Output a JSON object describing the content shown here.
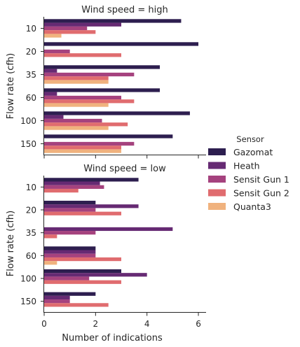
{
  "chart_data": {
    "type": "bar",
    "orientation": "horizontal",
    "xlabel": "Number of indications",
    "ylabel": "Flow rate (cfh)",
    "xlim": [
      0,
      6.3
    ],
    "xticks": [
      "0",
      "2",
      "4",
      "6"
    ],
    "categories": [
      "10",
      "20",
      "35",
      "60",
      "100",
      "150"
    ],
    "legend": {
      "title": "Sensor",
      "placement": "right",
      "entries": [
        {
          "name": "Gazomat",
          "color": "#2d1e4f"
        },
        {
          "name": "Heath",
          "color": "#662a73"
        },
        {
          "name": "Sensit Gun 1",
          "color": "#a5427e"
        },
        {
          "name": "Sensit Gun 2",
          "color": "#e06c6f"
        },
        {
          "name": "Quanta3",
          "color": "#f0b27e"
        }
      ]
    },
    "panels": [
      {
        "title": "Wind speed = high",
        "series": [
          {
            "name": "Gazomat",
            "values": [
              5.33,
              6.0,
              4.5,
              4.5,
              5.67,
              5.0
            ]
          },
          {
            "name": "Heath",
            "values": [
              3.0,
              0.0,
              0.5,
              0.5,
              0.75,
              0.0
            ]
          },
          {
            "name": "Sensit Gun 1",
            "values": [
              1.67,
              1.0,
              3.5,
              3.0,
              2.25,
              3.5
            ]
          },
          {
            "name": "Sensit Gun 2",
            "values": [
              2.0,
              3.0,
              2.5,
              3.5,
              3.25,
              3.0
            ]
          },
          {
            "name": "Quanta3",
            "values": [
              0.67,
              0.0,
              2.5,
              2.5,
              2.5,
              3.0
            ]
          }
        ]
      },
      {
        "title": "Wind speed = low",
        "series": [
          {
            "name": "Gazomat",
            "values": [
              3.67,
              2.0,
              0.0,
              2.0,
              3.0,
              2.0
            ]
          },
          {
            "name": "Heath",
            "values": [
              2.17,
              3.67,
              5.0,
              2.0,
              4.0,
              1.0
            ]
          },
          {
            "name": "Sensit Gun 1",
            "values": [
              2.33,
              2.0,
              2.0,
              2.0,
              1.75,
              1.0
            ]
          },
          {
            "name": "Sensit Gun 2",
            "values": [
              1.33,
              3.0,
              0.5,
              3.0,
              3.0,
              2.5
            ]
          },
          {
            "name": "Quanta3",
            "values": [
              0.0,
              0.0,
              0.0,
              0.5,
              0.0,
              0.0
            ]
          }
        ]
      }
    ]
  }
}
